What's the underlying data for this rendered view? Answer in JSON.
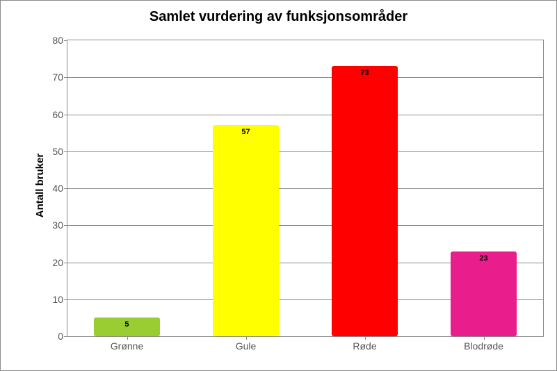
{
  "chart": {
    "type": "bar",
    "title": "Samlet vurdering av funksjonsområder",
    "title_fontsize": 20,
    "ylabel": "Antall bruker",
    "ylabel_fontsize": 15,
    "categories": [
      "Grønne",
      "Gule",
      "Røde",
      "Blodrøde"
    ],
    "values": [
      5,
      57,
      73,
      23
    ],
    "bar_colors": [
      "#9ACD32",
      "#FFFF00",
      "#FF0000",
      "#E91E8C"
    ],
    "data_label_fontsize": 11,
    "ylim": [
      0,
      80
    ],
    "ytick_step": 10,
    "tick_fontsize": 14,
    "background_color": "#ffffff",
    "grid_color": "#888888",
    "border_color": "#8a8a8a",
    "bar_width_pct": 14,
    "bar_gap_pct": 25
  }
}
